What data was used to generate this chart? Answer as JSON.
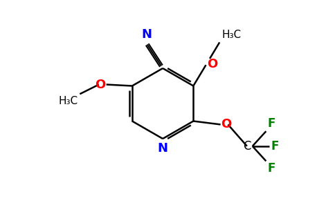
{
  "background_color": "#ffffff",
  "figure_width": 4.84,
  "figure_height": 3.0,
  "dpi": 100,
  "bond_color": "#000000",
  "atom_colors": {
    "N": "#0000ff",
    "O": "#ff0000",
    "F": "#008000",
    "C": "#000000"
  }
}
